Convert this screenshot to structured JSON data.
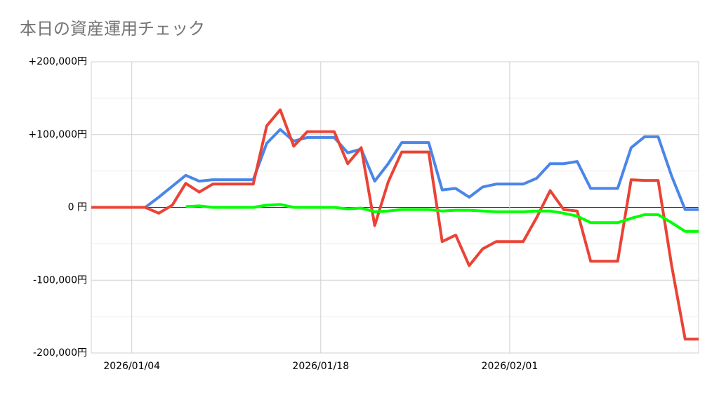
{
  "chart_data": {
    "type": "line",
    "title": "本日の資産運用チェック",
    "x": [
      "2026/01/01",
      "2026/01/02",
      "2026/01/03",
      "2026/01/04",
      "2026/01/05",
      "2026/01/06",
      "2026/01/07",
      "2026/01/08",
      "2026/01/09",
      "2026/01/10",
      "2026/01/11",
      "2026/01/12",
      "2026/01/13",
      "2026/01/14",
      "2026/01/15",
      "2026/01/16",
      "2026/01/17",
      "2026/01/18",
      "2026/01/19",
      "2026/01/20",
      "2026/01/21",
      "2026/01/22",
      "2026/01/23",
      "2026/01/24",
      "2026/01/25",
      "2026/01/26",
      "2026/01/27",
      "2026/01/28",
      "2026/01/29",
      "2026/01/30",
      "2026/01/31",
      "2026/02/01",
      "2026/02/02",
      "2026/02/03",
      "2026/02/04",
      "2026/02/05",
      "2026/02/06",
      "2026/02/07",
      "2026/02/08",
      "2026/02/09",
      "2026/02/10",
      "2026/02/11",
      "2026/02/12",
      "2026/02/13",
      "2026/02/14",
      "2026/02/15"
    ],
    "xlim": [
      "2026/01/01",
      "2026/02/15"
    ],
    "xticks": [
      "2026/01/04",
      "2026/01/18",
      "2026/02/01"
    ],
    "series": [
      {
        "color": "#4a86e8",
        "values": [
          0,
          0,
          0,
          0,
          0,
          14000,
          29000,
          44000,
          36000,
          38000,
          38000,
          38000,
          38000,
          88000,
          107000,
          91000,
          96000,
          96000,
          96000,
          75000,
          80000,
          36000,
          60000,
          89000,
          89000,
          89000,
          24000,
          26000,
          14000,
          28000,
          32000,
          32000,
          32000,
          40000,
          60000,
          60000,
          63000,
          26000,
          26000,
          26000,
          82000,
          97000,
          97000,
          43000,
          -3000,
          -3000
        ]
      },
      {
        "color": "#ea4335",
        "values": [
          0,
          0,
          0,
          0,
          0,
          -8000,
          3000,
          33000,
          21000,
          32000,
          32000,
          32000,
          32000,
          112000,
          134000,
          84000,
          104000,
          104000,
          104000,
          60000,
          82000,
          -25000,
          35000,
          76000,
          76000,
          76000,
          -47000,
          -38000,
          -80000,
          -57000,
          -47000,
          -47000,
          -47000,
          -14000,
          23000,
          -3000,
          -5000,
          -74000,
          -74000,
          -74000,
          38000,
          37000,
          37000,
          -80000,
          -181000,
          -181000
        ]
      },
      {
        "color": "#00ff00",
        "values": [
          null,
          null,
          null,
          null,
          null,
          null,
          null,
          1000,
          2000,
          0,
          0,
          0,
          0,
          3000,
          4000,
          0,
          0,
          0,
          0,
          -2000,
          -1000,
          -6000,
          -5000,
          -3000,
          -3000,
          -3000,
          -5000,
          -4000,
          -4000,
          -5000,
          -6000,
          -6000,
          -6000,
          -5000,
          -5000,
          -8000,
          -12000,
          -21000,
          -21000,
          -21000,
          -15000,
          -10000,
          -10000,
          -21000,
          -33000,
          -33000
        ]
      }
    ],
    "ylim": [
      -200000,
      200000
    ],
    "yticks": [
      {
        "value": 200000,
        "label": "+200,000円"
      },
      {
        "value": 100000,
        "label": "+100,000円"
      },
      {
        "value": 0,
        "label": "0 円"
      },
      {
        "value": -100000,
        "label": "-100,000円"
      },
      {
        "value": -200000,
        "label": "-200,000円"
      }
    ],
    "yminor": [
      150000,
      50000,
      -50000,
      -150000
    ],
    "grid": true
  }
}
